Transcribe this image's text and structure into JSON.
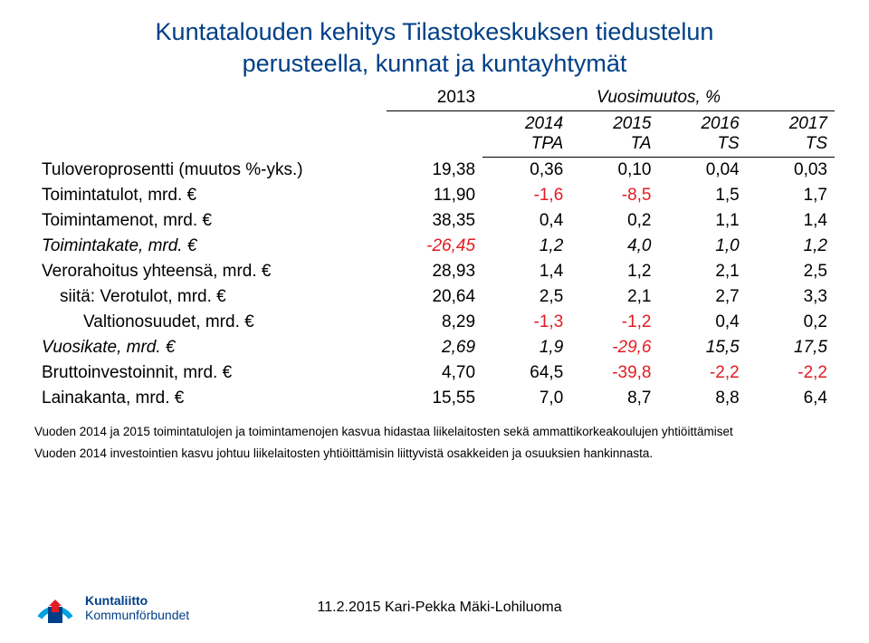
{
  "title_line1": "Kuntatalouden kehitys Tilastokeskuksen tiedustelun",
  "title_line2": "perusteella, kunnat ja kuntayhtymät",
  "columns": {
    "c0": "",
    "c1_top": "2013",
    "mid_top": "Vuosimuutos, %",
    "c2_top": "2014",
    "c3_top": "2015",
    "c4_top": "2016",
    "c5_top": "2017",
    "c2_sub": "TPA",
    "c3_sub": "TA",
    "c4_sub": "TS",
    "c5_sub": "TS"
  },
  "rows": [
    {
      "label": "Tuloveroprosentti (muutos %-yks.)",
      "indent": 0,
      "ital": false,
      "v1": "19,38",
      "v2": "0,36",
      "v3": "0,10",
      "v4": "0,04",
      "v5": "0,03"
    },
    {
      "label": "Toimintatulot, mrd. €",
      "indent": 0,
      "ital": false,
      "v1": "11,90",
      "v2": "-1,6",
      "v3": "-8,5",
      "v4": "1,5",
      "v5": "1,7"
    },
    {
      "label": "Toimintamenot, mrd. €",
      "indent": 0,
      "ital": false,
      "v1": "38,35",
      "v2": "0,4",
      "v3": "0,2",
      "v4": "1,1",
      "v5": "1,4"
    },
    {
      "label": "Toimintakate, mrd. €",
      "indent": 0,
      "ital": true,
      "v1": "-26,45",
      "v2": "1,2",
      "v3": "4,0",
      "v4": "1,0",
      "v5": "1,2"
    },
    {
      "label": "Verorahoitus yhteensä, mrd. €",
      "indent": 0,
      "ital": false,
      "v1": "28,93",
      "v2": "1,4",
      "v3": "1,2",
      "v4": "2,1",
      "v5": "2,5"
    },
    {
      "label": "siitä: Verotulot, mrd. €",
      "indent": 1,
      "ital": false,
      "v1": "20,64",
      "v2": "2,5",
      "v3": "2,1",
      "v4": "2,7",
      "v5": "3,3"
    },
    {
      "label": "Valtionosuudet, mrd. €",
      "indent": 2,
      "ital": false,
      "v1": "8,29",
      "v2": "-1,3",
      "v3": "-1,2",
      "v4": "0,4",
      "v5": "0,2"
    },
    {
      "label": "Vuosikate, mrd. €",
      "indent": 0,
      "ital": true,
      "v1": "2,69",
      "v2": "1,9",
      "v3": "-29,6",
      "v4": "15,5",
      "v5": "17,5"
    },
    {
      "label": "Bruttoinvestoinnit, mrd. €",
      "indent": 0,
      "ital": false,
      "v1": "4,70",
      "v2": "64,5",
      "v3": "-39,8",
      "v4": "-2,2",
      "v5": "-2,2"
    },
    {
      "label": "Lainakanta, mrd. €",
      "indent": 0,
      "ital": false,
      "v1": "15,55",
      "v2": "7,0",
      "v3": "8,7",
      "v4": "8,8",
      "v5": "6,4"
    }
  ],
  "footnotes": [
    "Vuoden 2014 ja 2015 toimintatulojen ja toimintamenojen kasvua hidastaa liikelaitosten sekä ammattikorkeakoulujen yhtiöittämiset",
    "Vuoden 2014 investointien kasvu johtuu liikelaitosten yhtiöittämisin liittyvistä osakkeiden ja osuuksien hankinnasta."
  ],
  "logo": {
    "line1": "Kuntaliitto",
    "line2": "Kommunförbundet"
  },
  "footer_date": "11.2.2015 Kari-Pekka Mäki-Lohiluoma",
  "colors": {
    "title": "#003f87",
    "neg": "#e31b23",
    "logo_arc": "#00a3e0",
    "logo_block": "#003f87",
    "logo_arrow": "#e31b23"
  }
}
